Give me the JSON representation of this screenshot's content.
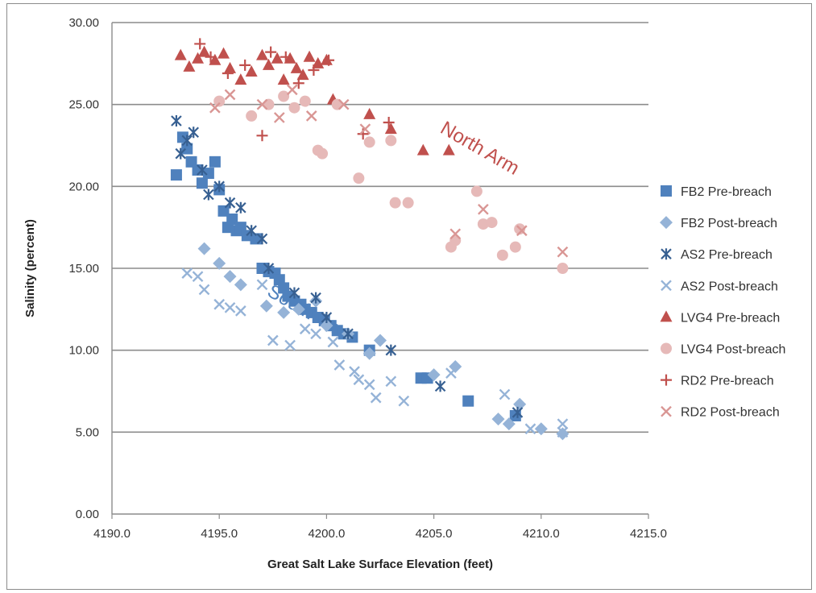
{
  "chart_data": {
    "type": "scatter",
    "title": "",
    "xlabel": "Great Salt Lake Surface Elevation (feet)",
    "ylabel": "Salinity (percent)",
    "xlim": [
      4190,
      4215
    ],
    "ylim": [
      0,
      30
    ],
    "x_ticks": [
      "4190.0",
      "4195.0",
      "4200.0",
      "4205.0",
      "4210.0",
      "4215.0"
    ],
    "y_ticks": [
      "0.00",
      "5.00",
      "10.00",
      "15.00",
      "20.00",
      "25.00",
      "30.00"
    ],
    "grid": "horizontal",
    "legend_position": "right",
    "annotations": [
      {
        "text": "North Arm",
        "x": 4207,
        "y": 22,
        "color": "#c0504d"
      },
      {
        "text": "South Arm",
        "x": 4199,
        "y": 12,
        "color": "#4f81bd"
      }
    ],
    "series": [
      {
        "name": "FB2 Pre-breach",
        "marker": "square",
        "color": "#4f81bd",
        "points": [
          [
            4193,
            20.7
          ],
          [
            4193.3,
            23
          ],
          [
            4193.5,
            22.3
          ],
          [
            4193.7,
            21.5
          ],
          [
            4194,
            21
          ],
          [
            4194.2,
            20.2
          ],
          [
            4194.5,
            20.8
          ],
          [
            4194.8,
            21.5
          ],
          [
            4195,
            19.8
          ],
          [
            4195.2,
            18.5
          ],
          [
            4195.4,
            17.5
          ],
          [
            4195.6,
            18
          ],
          [
            4195.8,
            17.3
          ],
          [
            4196,
            17.5
          ],
          [
            4196.3,
            17
          ],
          [
            4196.7,
            16.8
          ],
          [
            4197,
            15
          ],
          [
            4197.3,
            14.8
          ],
          [
            4197.6,
            14.7
          ],
          [
            4197.8,
            14.3
          ],
          [
            4198,
            13.8
          ],
          [
            4198.2,
            13.3
          ],
          [
            4198.5,
            13
          ],
          [
            4198.8,
            12.8
          ],
          [
            4199,
            12.5
          ],
          [
            4199.3,
            12.3
          ],
          [
            4199.6,
            12
          ],
          [
            4199.9,
            11.8
          ],
          [
            4200.2,
            11.5
          ],
          [
            4200.5,
            11.2
          ],
          [
            4200.8,
            11
          ],
          [
            4201.2,
            10.8
          ],
          [
            4202,
            10
          ],
          [
            4204.4,
            8.3
          ],
          [
            4204.7,
            8.3
          ],
          [
            4206.6,
            6.9
          ],
          [
            4208.8,
            6
          ]
        ]
      },
      {
        "name": "FB2 Post-breach",
        "marker": "diamond",
        "color": "#95b3d7",
        "points": [
          [
            4194.3,
            16.2
          ],
          [
            4195,
            15.3
          ],
          [
            4195.5,
            14.5
          ],
          [
            4196,
            14
          ],
          [
            4197.2,
            12.7
          ],
          [
            4198,
            12.3
          ],
          [
            4198.7,
            12.5
          ],
          [
            4199.5,
            13
          ],
          [
            4200,
            11.5
          ],
          [
            4201,
            11
          ],
          [
            4202,
            9.8
          ],
          [
            4202.5,
            10.6
          ],
          [
            4205,
            8.5
          ],
          [
            4206,
            9
          ],
          [
            4208,
            5.8
          ],
          [
            4208.5,
            5.5
          ],
          [
            4209,
            6.7
          ],
          [
            4210,
            5.2
          ],
          [
            4211,
            4.9
          ]
        ]
      },
      {
        "name": "AS2 Pre-breach",
        "marker": "asterisk",
        "color": "#376092",
        "points": [
          [
            4193,
            24
          ],
          [
            4193.2,
            22
          ],
          [
            4193.5,
            22.8
          ],
          [
            4193.8,
            23.3
          ],
          [
            4194.2,
            21
          ],
          [
            4194.5,
            19.5
          ],
          [
            4195,
            20
          ],
          [
            4195.5,
            19
          ],
          [
            4196,
            18.7
          ],
          [
            4196.5,
            17.3
          ],
          [
            4197,
            16.8
          ],
          [
            4197.3,
            15
          ],
          [
            4198.5,
            13.5
          ],
          [
            4199.5,
            13.2
          ],
          [
            4200,
            12
          ],
          [
            4201,
            11
          ],
          [
            4203,
            10
          ],
          [
            4205.3,
            7.8
          ],
          [
            4208.9,
            6.2
          ]
        ]
      },
      {
        "name": "AS2 Post-breach",
        "marker": "x",
        "color": "#95b3d7",
        "points": [
          [
            4193.5,
            14.7
          ],
          [
            4194,
            14.5
          ],
          [
            4194.3,
            13.7
          ],
          [
            4195,
            12.8
          ],
          [
            4195.5,
            12.6
          ],
          [
            4196,
            12.4
          ],
          [
            4197,
            14
          ],
          [
            4197.5,
            10.6
          ],
          [
            4198.3,
            10.3
          ],
          [
            4199,
            11.3
          ],
          [
            4199.5,
            11
          ],
          [
            4200.3,
            10.5
          ],
          [
            4200.6,
            9.1
          ],
          [
            4201.3,
            8.7
          ],
          [
            4201.5,
            8.2
          ],
          [
            4202,
            7.9
          ],
          [
            4202.3,
            7.1
          ],
          [
            4203,
            8.1
          ],
          [
            4203.6,
            6.9
          ],
          [
            4205.8,
            8.6
          ],
          [
            4208.3,
            7.3
          ],
          [
            4209.5,
            5.2
          ],
          [
            4211,
            5.5
          ],
          [
            4211,
            5
          ]
        ]
      },
      {
        "name": "LVG4 Pre-breach",
        "marker": "triangle",
        "color": "#c0504d",
        "points": [
          [
            4193.2,
            28
          ],
          [
            4193.6,
            27.3
          ],
          [
            4194,
            27.8
          ],
          [
            4194.3,
            28.2
          ],
          [
            4194.8,
            27.7
          ],
          [
            4195.2,
            28.1
          ],
          [
            4195.5,
            27.2
          ],
          [
            4196,
            26.5
          ],
          [
            4196.5,
            27
          ],
          [
            4197,
            28
          ],
          [
            4197.3,
            27.4
          ],
          [
            4197.7,
            27.8
          ],
          [
            4198,
            26.5
          ],
          [
            4198.3,
            27.8
          ],
          [
            4198.6,
            27.2
          ],
          [
            4198.9,
            26.8
          ],
          [
            4199.2,
            27.9
          ],
          [
            4199.6,
            27.5
          ],
          [
            4200,
            27.7
          ],
          [
            4200.3,
            25.3
          ],
          [
            4202,
            24.4
          ],
          [
            4203,
            23.5
          ],
          [
            4204.5,
            22.2
          ],
          [
            4205.7,
            22.2
          ]
        ]
      },
      {
        "name": "LVG4 Post-breach",
        "marker": "circle",
        "color": "#e6b9b8",
        "points": [
          [
            4195,
            25.2
          ],
          [
            4196.5,
            24.3
          ],
          [
            4197.3,
            25
          ],
          [
            4198,
            25.5
          ],
          [
            4198.5,
            24.8
          ],
          [
            4199,
            25.2
          ],
          [
            4199.6,
            22.2
          ],
          [
            4199.8,
            22
          ],
          [
            4200.5,
            25
          ],
          [
            4201.5,
            20.5
          ],
          [
            4202,
            22.7
          ],
          [
            4203,
            22.8
          ],
          [
            4203.2,
            19
          ],
          [
            4203.8,
            19
          ],
          [
            4205.8,
            16.3
          ],
          [
            4206,
            16.7
          ],
          [
            4207,
            19.7
          ],
          [
            4207.3,
            17.7
          ],
          [
            4207.7,
            17.8
          ],
          [
            4208.2,
            15.8
          ],
          [
            4208.8,
            16.3
          ],
          [
            4209,
            17.4
          ],
          [
            4211,
            15
          ]
        ]
      },
      {
        "name": "RD2 Pre-breach",
        "marker": "plus",
        "color": "#c0504d",
        "points": [
          [
            4194.1,
            28.7
          ],
          [
            4194.6,
            27.9
          ],
          [
            4195.4,
            26.9
          ],
          [
            4196.2,
            27.4
          ],
          [
            4197,
            23.1
          ],
          [
            4197.4,
            28.2
          ],
          [
            4198.1,
            27.9
          ],
          [
            4198.7,
            26.3
          ],
          [
            4199.4,
            27.1
          ],
          [
            4200.1,
            27.7
          ],
          [
            4201.7,
            23.2
          ],
          [
            4202.9,
            23.9
          ]
        ]
      },
      {
        "name": "RD2 Post-breach",
        "marker": "x",
        "color": "#d99694",
        "points": [
          [
            4194.8,
            24.8
          ],
          [
            4195.5,
            25.6
          ],
          [
            4197,
            25
          ],
          [
            4197.8,
            24.2
          ],
          [
            4198.4,
            25.9
          ],
          [
            4199.3,
            24.3
          ],
          [
            4200.8,
            25
          ],
          [
            4201.8,
            23.5
          ],
          [
            4206,
            17.1
          ],
          [
            4207.3,
            18.6
          ],
          [
            4209.1,
            17.3
          ],
          [
            4211,
            16
          ]
        ]
      }
    ]
  }
}
